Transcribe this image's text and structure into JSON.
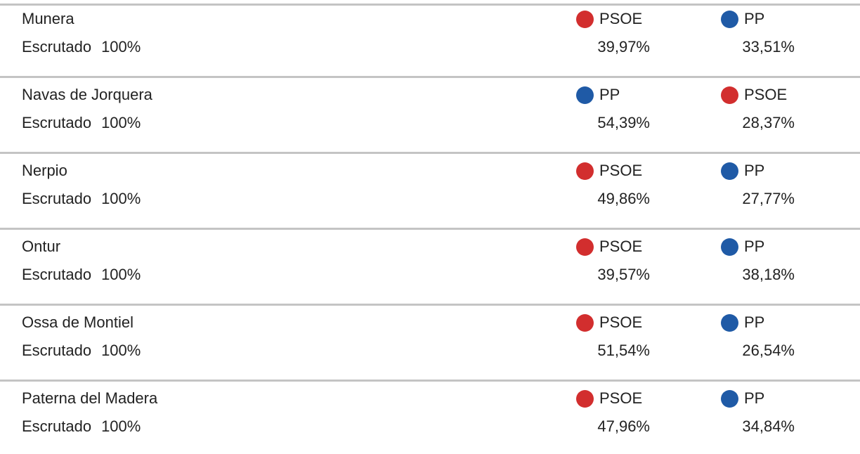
{
  "colors": {
    "PSOE": "#d22e2e",
    "PP": "#1f5aa6"
  },
  "rows": [
    {
      "municipality": "Munera",
      "status_label": "Escrutado",
      "scrutinized": "100%",
      "parties": [
        {
          "name": "PSOE",
          "share": "39,97%",
          "color": "#d22e2e"
        },
        {
          "name": "PP",
          "share": "33,51%",
          "color": "#1f5aa6"
        }
      ]
    },
    {
      "municipality": "Navas de Jorquera",
      "status_label": "Escrutado",
      "scrutinized": "100%",
      "parties": [
        {
          "name": "PP",
          "share": "54,39%",
          "color": "#1f5aa6"
        },
        {
          "name": "PSOE",
          "share": "28,37%",
          "color": "#d22e2e"
        }
      ]
    },
    {
      "municipality": "Nerpio",
      "status_label": "Escrutado",
      "scrutinized": "100%",
      "parties": [
        {
          "name": "PSOE",
          "share": "49,86%",
          "color": "#d22e2e"
        },
        {
          "name": "PP",
          "share": "27,77%",
          "color": "#1f5aa6"
        }
      ]
    },
    {
      "municipality": "Ontur",
      "status_label": "Escrutado",
      "scrutinized": "100%",
      "parties": [
        {
          "name": "PSOE",
          "share": "39,57%",
          "color": "#d22e2e"
        },
        {
          "name": "PP",
          "share": "38,18%",
          "color": "#1f5aa6"
        }
      ]
    },
    {
      "municipality": "Ossa de Montiel",
      "status_label": "Escrutado",
      "scrutinized": "100%",
      "parties": [
        {
          "name": "PSOE",
          "share": "51,54%",
          "color": "#d22e2e"
        },
        {
          "name": "PP",
          "share": "26,54%",
          "color": "#1f5aa6"
        }
      ]
    },
    {
      "municipality": "Paterna del Madera",
      "status_label": "Escrutado",
      "scrutinized": "100%",
      "parties": [
        {
          "name": "PSOE",
          "share": "47,96%",
          "color": "#d22e2e"
        },
        {
          "name": "PP",
          "share": "34,84%",
          "color": "#1f5aa6"
        }
      ]
    }
  ]
}
